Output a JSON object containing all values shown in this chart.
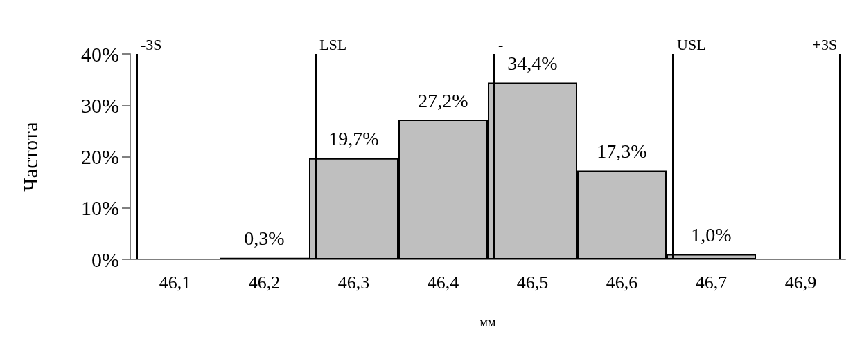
{
  "chart_data": {
    "type": "bar",
    "xlabel": "мм",
    "ylabel": "Частота",
    "categories": [
      "46,1",
      "46,2",
      "46,3",
      "46,4",
      "46,5",
      "46,6",
      "46,7",
      "46,9"
    ],
    "values": [
      0,
      0.3,
      19.7,
      27.2,
      34.4,
      17.3,
      1.0,
      0
    ],
    "value_labels": [
      null,
      "0,3%",
      "19,7%",
      "27,2%",
      "34,4%",
      "17,3%",
      "1,0%",
      null
    ],
    "color": "#bfbfbf",
    "ylim": [
      0,
      40
    ],
    "yticks": [
      {
        "value": 0,
        "label": "0%"
      },
      {
        "value": 10,
        "label": "10%"
      },
      {
        "value": 20,
        "label": "20%"
      },
      {
        "value": 30,
        "label": "30%"
      },
      {
        "value": 40,
        "label": "40%"
      }
    ],
    "grid": false,
    "ref_lines": [
      {
        "axis": "x",
        "value": "46,1",
        "label": "-3S",
        "color": "#000000"
      },
      {
        "axis": "x",
        "value": "46,3",
        "label": "LSL",
        "color": "#000000"
      },
      {
        "axis": "x",
        "value": "46,5",
        "label": "-",
        "color": "#000000"
      },
      {
        "axis": "x",
        "value": "46,7",
        "label": "USL",
        "color": "#000000"
      },
      {
        "axis": "x",
        "value": null,
        "label": "+3S",
        "color": "#000000"
      }
    ]
  }
}
